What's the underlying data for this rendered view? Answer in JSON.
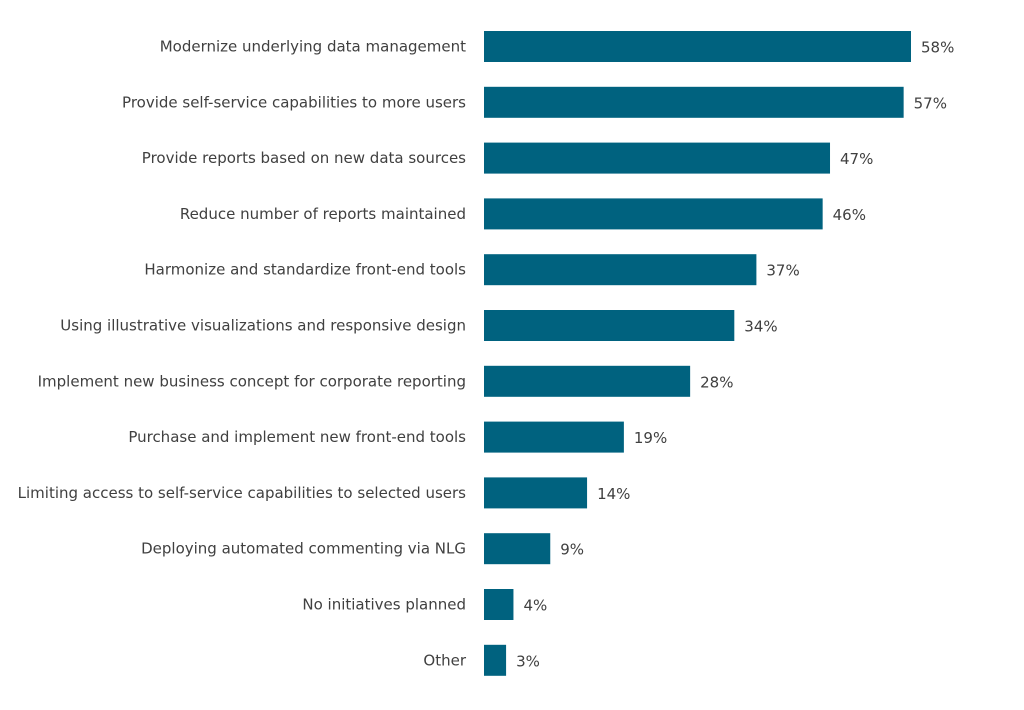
{
  "chart_data": {
    "type": "bar",
    "orientation": "horizontal",
    "title": "",
    "xlabel": "",
    "ylabel": "",
    "categories": [
      "Modernize underlying data management",
      "Provide self-service capabilities to more users",
      "Provide reports based on new data sources",
      "Reduce number of reports maintained",
      "Harmonize and standardize front-end tools",
      "Using illustrative visualizations and responsive design",
      "Implement new business concept for corporate reporting",
      "Purchase and implement new front-end tools",
      "Limiting access to self-service capabilities to selected users",
      "Deploying automated commenting via NLG",
      "No initiatives planned",
      "Other"
    ],
    "values": [
      58,
      57,
      47,
      46,
      37,
      34,
      28,
      19,
      14,
      9,
      4,
      3
    ],
    "value_labels": [
      "58%",
      "57%",
      "47%",
      "46%",
      "37%",
      "34%",
      "28%",
      "19%",
      "14%",
      "9%",
      "4%",
      "3%"
    ],
    "unit": "%",
    "xlim": [
      0,
      58
    ],
    "grid": false,
    "legend": "none",
    "bar_color": "#00627f"
  }
}
